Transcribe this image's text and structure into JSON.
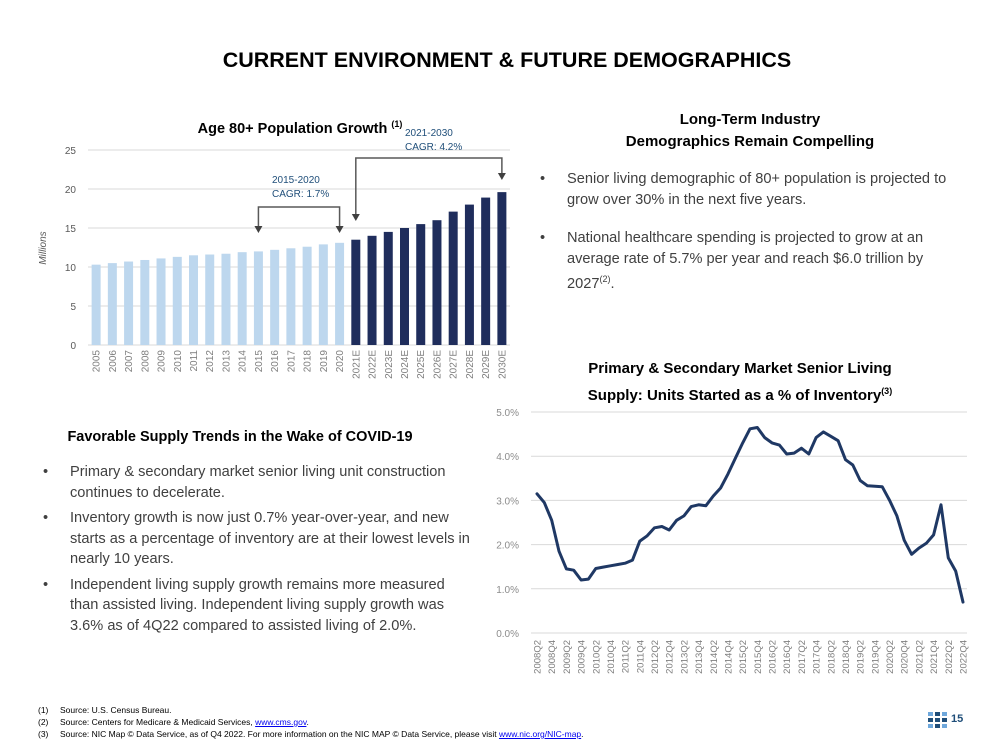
{
  "page": {
    "title": "CURRENT ENVIRONMENT & FUTURE DEMOGRAPHICS",
    "page_number": "15"
  },
  "left_section": {
    "heading": "Favorable Supply Trends in the Wake of COVID-19",
    "bullets": [
      "Primary & secondary market senior living unit construction continues to decelerate.",
      "Inventory growth is now just 0.7% year-over-year, and new starts as a percentage of inventory are at their lowest levels in nearly 10 years.",
      "Independent living supply growth remains more measured than assisted living. Independent living supply growth was 3.6% as of 4Q22 compared to assisted living of 2.0%."
    ]
  },
  "right_section": {
    "heading_line1": "Long-Term Industry",
    "heading_line2": "Demographics Remain Compelling",
    "bullet1": "Senior living demographic of 80+ population is projected to grow over 30% in the next five years.",
    "bullet2": "National healthcare spending is projected to grow at an average rate of 5.7% per year and reach $6.0 trillion by 2027",
    "bullet2_sup": "(2)",
    "bullet2_end": "."
  },
  "footnotes": [
    {
      "num": "(1)",
      "text": "Source: U.S. Census Bureau.",
      "link": "",
      "after": ""
    },
    {
      "num": "(2)",
      "text": "Source: Centers for Medicare & Medicaid Services, ",
      "link": "www.cms.gov",
      "after": "."
    },
    {
      "num": "(3)",
      "text": "Source: NIC Map © Data Service, as of Q4 2022. For more information on the NIC MAP © Data Service, please visit ",
      "link": "www.nic.org/NIC-map",
      "after": "."
    }
  ],
  "colors": {
    "historical_bar": "#bdd7ee",
    "estimate_bar": "#1f2d5c",
    "line": "#1f3864",
    "annotation_text": "#1f4e79",
    "gridline": "#d9d9d9"
  },
  "chart_data": [
    {
      "type": "bar",
      "title": "Age 80+ Population Growth",
      "title_sup": "(1)",
      "ylabel": "Millions",
      "ylim": [
        0,
        25
      ],
      "yticks": [
        "0",
        "5",
        "10",
        "15",
        "20",
        "25"
      ],
      "grid": true,
      "categories": [
        "2005",
        "2006",
        "2007",
        "2008",
        "2009",
        "2010",
        "2011",
        "2012",
        "2013",
        "2014",
        "2015",
        "2016",
        "2017",
        "2018",
        "2019",
        "2020",
        "2021E",
        "2022E",
        "2023E",
        "2024E",
        "2025E",
        "2026E",
        "2027E",
        "2028E",
        "2029E",
        "2030E"
      ],
      "values": [
        10.3,
        10.5,
        10.7,
        10.9,
        11.1,
        11.3,
        11.5,
        11.6,
        11.7,
        11.9,
        12.0,
        12.2,
        12.4,
        12.6,
        12.9,
        13.1,
        13.5,
        14.0,
        14.5,
        15.0,
        15.5,
        16.0,
        17.1,
        18.0,
        18.9,
        19.6
      ],
      "annotations": [
        {
          "line1": "2015-2020",
          "line2": "CAGR: 1.7%",
          "from": "2015",
          "to": "2020"
        },
        {
          "line1": "2021-2030",
          "line2": "CAGR: 4.2%",
          "from": "2021E",
          "to": "2030E"
        }
      ]
    },
    {
      "type": "line",
      "title_line1": "Primary & Secondary Market Senior Living",
      "title_line2": "Supply: Units Started as a % of Inventory",
      "title_sup": "(3)",
      "ylim": [
        0,
        5
      ],
      "yticks": [
        "0.0%",
        "1.0%",
        "2.0%",
        "3.0%",
        "4.0%",
        "5.0%"
      ],
      "grid": true,
      "x_labels": [
        "2008Q2",
        "2008Q4",
        "2009Q2",
        "2009Q4",
        "2010Q2",
        "2010Q4",
        "2011Q2",
        "2011Q4",
        "2012Q2",
        "2012Q4",
        "2013Q2",
        "2013Q4",
        "2014Q2",
        "2014Q4",
        "2015Q2",
        "2015Q4",
        "2016Q2",
        "2016Q4",
        "2017Q2",
        "2017Q4",
        "2018Q2",
        "2018Q4",
        "2019Q2",
        "2019Q4",
        "2020Q2",
        "2020Q4",
        "2021Q2",
        "2021Q4",
        "2022Q2",
        "2022Q4"
      ],
      "x_start": "2008Q2",
      "x_end": "2022Q4",
      "values": [
        3.15,
        2.95,
        2.55,
        1.85,
        1.45,
        1.42,
        1.2,
        1.22,
        1.46,
        1.49,
        1.52,
        1.55,
        1.58,
        1.65,
        2.08,
        2.2,
        2.38,
        2.41,
        2.33,
        2.55,
        2.65,
        2.86,
        2.9,
        2.88,
        3.1,
        3.28,
        3.6,
        3.95,
        4.3,
        4.62,
        4.65,
        4.42,
        4.3,
        4.25,
        4.05,
        4.07,
        4.18,
        4.05,
        4.42,
        4.55,
        4.45,
        4.35,
        3.92,
        3.8,
        3.45,
        3.33,
        3.32,
        3.31,
        3.0,
        2.65,
        2.1,
        1.78,
        1.92,
        2.03,
        2.22,
        2.9,
        1.7,
        1.4,
        0.7
      ]
    }
  ]
}
